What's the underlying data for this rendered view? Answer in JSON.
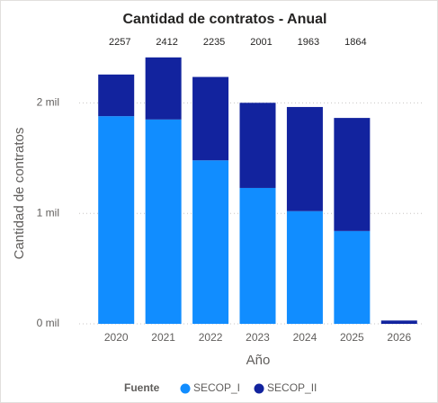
{
  "chart_data": {
    "type": "stacked_bar",
    "title": "Cantidad de contratos - Anual",
    "x_label": "Año",
    "y_label": "Cantidad de contratos",
    "legend_title": "Fuente",
    "categories": [
      "2020",
      "2021",
      "2022",
      "2023",
      "2024",
      "2025",
      "2026"
    ],
    "series": [
      {
        "name": "SECOP_I",
        "color": "#118DFF",
        "values": [
          1880,
          1850,
          1480,
          1230,
          1020,
          840,
          0
        ]
      },
      {
        "name": "SECOP_II",
        "color": "#12239E",
        "values": [
          377,
          562,
          755,
          771,
          943,
          1024,
          30
        ]
      }
    ],
    "totals": [
      2257,
      2412,
      2235,
      2001,
      1963,
      1864,
      null
    ],
    "ylim": [
      0,
      2500
    ],
    "yticks": [
      {
        "value": 0,
        "label": "0 mil"
      },
      {
        "value": 1000,
        "label": "1 mil"
      },
      {
        "value": 2000,
        "label": "2 mil"
      }
    ],
    "grid": true
  }
}
